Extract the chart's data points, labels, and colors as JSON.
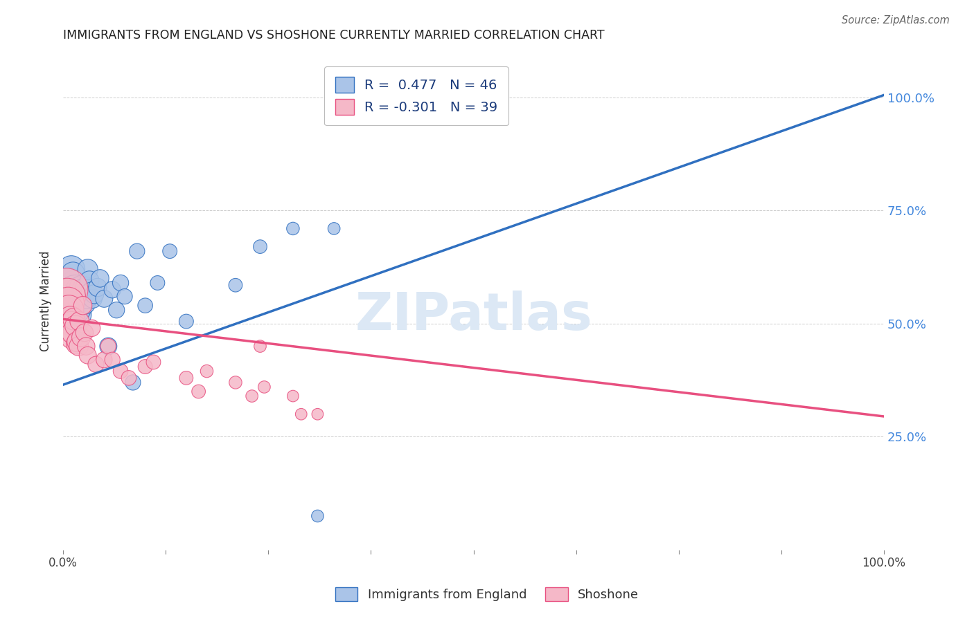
{
  "title": "IMMIGRANTS FROM ENGLAND VS SHOSHONE CURRENTLY MARRIED CORRELATION CHART",
  "source": "Source: ZipAtlas.com",
  "ylabel": "Currently Married",
  "color_england": "#aac4e8",
  "color_shoshone": "#f5b8c8",
  "color_england_line": "#3070c0",
  "color_shoshone_line": "#e85080",
  "color_title": "#222222",
  "color_source": "#666666",
  "color_ylabel": "#333333",
  "color_legend_text": "#1a3a7a",
  "color_yticklabels": "#4488dd",
  "watermark_color": "#dce8f5",
  "background_color": "#ffffff",
  "england_x": [
    0.005,
    0.007,
    0.01,
    0.012,
    0.012,
    0.013,
    0.015,
    0.015,
    0.017,
    0.018,
    0.018,
    0.02,
    0.02,
    0.02,
    0.022,
    0.023,
    0.024,
    0.025,
    0.026,
    0.027,
    0.028,
    0.028,
    0.03,
    0.032,
    0.034,
    0.036,
    0.038,
    0.042,
    0.045,
    0.05,
    0.055,
    0.06,
    0.065,
    0.07,
    0.075,
    0.085,
    0.09,
    0.1,
    0.115,
    0.13,
    0.15,
    0.21,
    0.24,
    0.28,
    0.31,
    0.33
  ],
  "england_y": [
    0.585,
    0.555,
    0.62,
    0.59,
    0.61,
    0.575,
    0.565,
    0.54,
    0.53,
    0.56,
    0.575,
    0.52,
    0.545,
    0.53,
    0.58,
    0.56,
    0.575,
    0.56,
    0.545,
    0.565,
    0.58,
    0.555,
    0.62,
    0.595,
    0.57,
    0.555,
    0.565,
    0.58,
    0.6,
    0.555,
    0.45,
    0.575,
    0.53,
    0.59,
    0.56,
    0.37,
    0.66,
    0.54,
    0.59,
    0.66,
    0.505,
    0.585,
    0.67,
    0.71,
    0.075,
    0.71
  ],
  "england_size": [
    180,
    120,
    100,
    80,
    75,
    70,
    200,
    160,
    90,
    85,
    80,
    75,
    70,
    65,
    75,
    70,
    65,
    70,
    65,
    60,
    60,
    55,
    55,
    50,
    50,
    48,
    48,
    45,
    42,
    40,
    40,
    38,
    35,
    35,
    32,
    32,
    32,
    30,
    28,
    28,
    28,
    25,
    25,
    22,
    20,
    20
  ],
  "shoshone_x": [
    0.004,
    0.005,
    0.006,
    0.007,
    0.008,
    0.009,
    0.01,
    0.011,
    0.012,
    0.013,
    0.015,
    0.016,
    0.017,
    0.019,
    0.02,
    0.022,
    0.024,
    0.026,
    0.028,
    0.03,
    0.035,
    0.04,
    0.05,
    0.055,
    0.06,
    0.07,
    0.08,
    0.1,
    0.11,
    0.15,
    0.165,
    0.175,
    0.21,
    0.23,
    0.24,
    0.245,
    0.28,
    0.29,
    0.31
  ],
  "shoshone_y": [
    0.575,
    0.56,
    0.545,
    0.53,
    0.49,
    0.51,
    0.5,
    0.47,
    0.48,
    0.51,
    0.495,
    0.455,
    0.46,
    0.45,
    0.505,
    0.47,
    0.54,
    0.48,
    0.45,
    0.43,
    0.49,
    0.41,
    0.42,
    0.45,
    0.42,
    0.395,
    0.38,
    0.405,
    0.415,
    0.38,
    0.35,
    0.395,
    0.37,
    0.34,
    0.45,
    0.36,
    0.34,
    0.3,
    0.3
  ],
  "shoshone_size": [
    250,
    180,
    140,
    120,
    100,
    90,
    80,
    75,
    70,
    65,
    60,
    55,
    55,
    50,
    50,
    48,
    45,
    42,
    42,
    40,
    38,
    35,
    35,
    32,
    32,
    30,
    30,
    28,
    28,
    25,
    25,
    22,
    22,
    20,
    20,
    20,
    18,
    18,
    18
  ],
  "england_trendline_x": [
    0.0,
    1.0
  ],
  "england_trendline_y": [
    0.365,
    1.005
  ],
  "shoshone_trendline_x": [
    0.0,
    1.0
  ],
  "shoshone_trendline_y": [
    0.51,
    0.295
  ],
  "xlim": [
    0.0,
    1.0
  ],
  "ylim": [
    0.0,
    1.1
  ],
  "ytick_positions": [
    0.25,
    0.5,
    0.75,
    1.0
  ],
  "ytick_labels": [
    "25.0%",
    "50.0%",
    "75.0%",
    "100.0%"
  ],
  "legend_R1": "R =  0.477",
  "legend_N1": "N = 46",
  "legend_R2": "R = -0.301",
  "legend_N2": "N = 39"
}
